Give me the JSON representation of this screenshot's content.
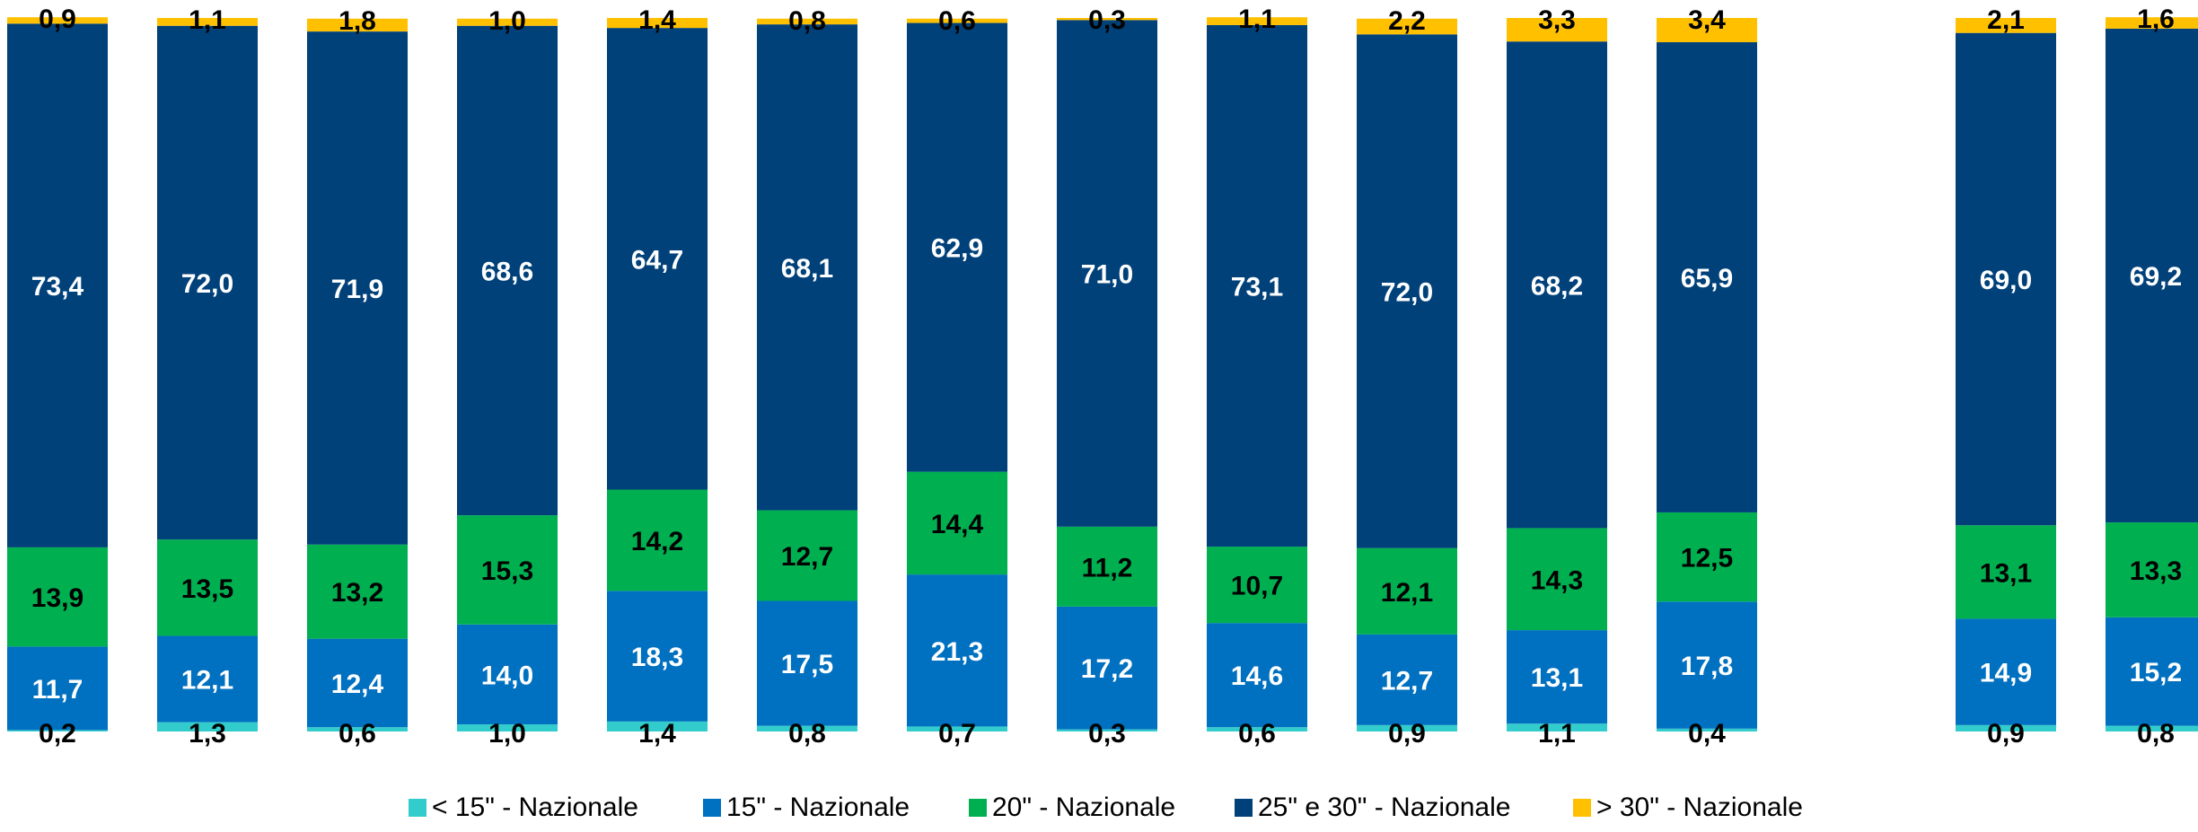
{
  "chart_data": {
    "type": "bar",
    "stacked": true,
    "normalized_percent": true,
    "title": "",
    "xlabel": "",
    "ylabel": "",
    "ylim": [
      0,
      100
    ],
    "grid": false,
    "legend_position": "bottom",
    "series": [
      {
        "name": "< 15\" - Nazionale",
        "color": "#33CCCC",
        "values": [
          0.2,
          1.3,
          0.6,
          1.0,
          1.4,
          0.8,
          0.7,
          0.3,
          0.6,
          0.9,
          1.1,
          0.4,
          0.9,
          0.8
        ],
        "labels": [
          "0,2",
          "1,3",
          "0,6",
          "1,0",
          "1,4",
          "0,8",
          "0,7",
          "0,3",
          "0,6",
          "0,9",
          "1,1",
          "0,4",
          "0,9",
          "0,8"
        ],
        "label_color": "#000000"
      },
      {
        "name": "15\" - Nazionale",
        "color": "#0070C0",
        "values": [
          11.7,
          12.1,
          12.4,
          14.0,
          18.3,
          17.5,
          21.3,
          17.2,
          14.6,
          12.7,
          13.1,
          17.8,
          14.9,
          15.2
        ],
        "labels": [
          "11,7",
          "12,1",
          "12,4",
          "14,0",
          "18,3",
          "17,5",
          "21,3",
          "17,2",
          "14,6",
          "12,7",
          "13,1",
          "17,8",
          "14,9",
          "15,2"
        ],
        "label_color": "#FFFFFF"
      },
      {
        "name": "20\" - Nazionale",
        "color": "#00B050",
        "values": [
          13.9,
          13.5,
          13.2,
          15.3,
          14.2,
          12.7,
          14.4,
          11.2,
          10.7,
          12.1,
          14.3,
          12.5,
          13.1,
          13.3
        ],
        "labels": [
          "13,9",
          "13,5",
          "13,2",
          "15,3",
          "14,2",
          "12,7",
          "14,4",
          "11,2",
          "10,7",
          "12,1",
          "14,3",
          "12,5",
          "13,1",
          "13,3"
        ],
        "label_color": "#000000"
      },
      {
        "name": "25\" e 30\" - Nazionale",
        "color": "#00417A",
        "values": [
          73.4,
          72.0,
          71.9,
          68.6,
          64.7,
          68.1,
          62.9,
          71.0,
          73.1,
          72.0,
          68.2,
          65.9,
          69.0,
          69.2
        ],
        "labels": [
          "73,4",
          "72,0",
          "71,9",
          "68,6",
          "64,7",
          "68,1",
          "62,9",
          "71,0",
          "73,1",
          "72,0",
          "68,2",
          "65,9",
          "69,0",
          "69,2"
        ],
        "label_color": "#FFFFFF"
      },
      {
        "name": "> 30\" - Nazionale",
        "color": "#FFC000",
        "values": [
          0.9,
          1.1,
          1.8,
          1.0,
          1.4,
          0.8,
          0.6,
          0.3,
          1.1,
          2.2,
          3.3,
          3.4,
          2.1,
          1.6
        ],
        "labels": [
          "0,9",
          "1,1",
          "1,8",
          "1,0",
          "1,4",
          "0,8",
          "0,6",
          "0,3",
          "1,1",
          "2,2",
          "3,3",
          "3,4",
          "2,1",
          "1,6"
        ],
        "label_color": "#000000"
      }
    ]
  }
}
